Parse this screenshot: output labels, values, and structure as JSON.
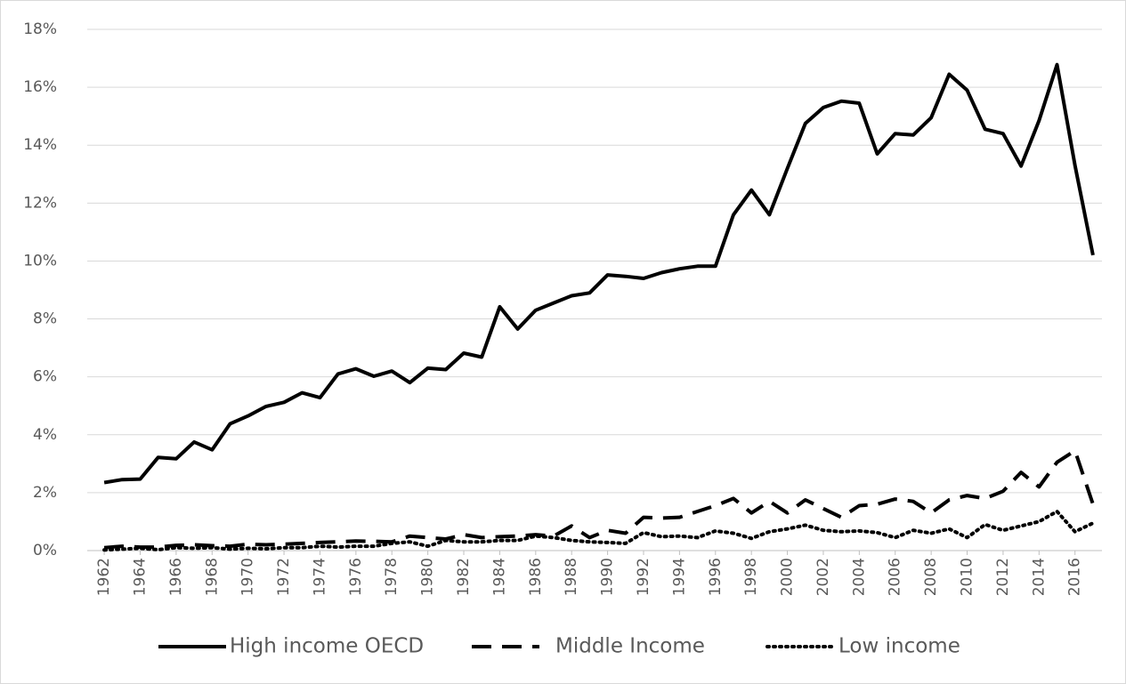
{
  "chart_data": {
    "type": "line",
    "x": [
      1962,
      1963,
      1964,
      1965,
      1966,
      1967,
      1968,
      1969,
      1970,
      1971,
      1972,
      1973,
      1974,
      1975,
      1976,
      1977,
      1978,
      1979,
      1980,
      1981,
      1982,
      1983,
      1984,
      1985,
      1986,
      1987,
      1988,
      1989,
      1990,
      1991,
      1992,
      1993,
      1994,
      1995,
      1996,
      1997,
      1998,
      1999,
      2000,
      2001,
      2002,
      2003,
      2004,
      2005,
      2006,
      2007,
      2008,
      2009,
      2010,
      2011,
      2012,
      2013,
      2014,
      2015,
      2016,
      2017
    ],
    "xlim": [
      1961.5,
      2017.5
    ],
    "xticks": [
      1962,
      1964,
      1966,
      1968,
      1970,
      1972,
      1974,
      1976,
      1978,
      1980,
      1982,
      1984,
      1986,
      1988,
      1990,
      1992,
      1994,
      1996,
      1998,
      2000,
      2002,
      2004,
      2006,
      2008,
      2010,
      2012,
      2014,
      2016
    ],
    "ylim": [
      0,
      18
    ],
    "yticks": [
      {
        "value": 0,
        "label": "0%"
      },
      {
        "value": 2,
        "label": "2%"
      },
      {
        "value": 4,
        "label": "4%"
      },
      {
        "value": 6,
        "label": "6%"
      },
      {
        "value": 8,
        "label": "8%"
      },
      {
        "value": 10,
        "label": "10%"
      },
      {
        "value": 12,
        "label": "12%"
      },
      {
        "value": 14,
        "label": "14%"
      },
      {
        "value": 16,
        "label": "16%"
      },
      {
        "value": 18,
        "label": "18%"
      }
    ],
    "grid": true,
    "legend": "bottom",
    "series": [
      {
        "name": "High income OECD",
        "color": "#000000",
        "line_style": "solid",
        "values": [
          2.35,
          2.45,
          2.47,
          3.22,
          3.17,
          3.75,
          3.48,
          4.38,
          4.65,
          4.98,
          5.12,
          5.45,
          5.28,
          6.1,
          6.28,
          6.02,
          6.2,
          5.8,
          6.3,
          6.25,
          6.82,
          6.68,
          8.42,
          7.65,
          8.3,
          8.55,
          8.8,
          8.9,
          9.52,
          9.47,
          9.4,
          9.6,
          9.73,
          9.82,
          9.82,
          11.6,
          12.45,
          11.6,
          13.2,
          14.75,
          15.3,
          15.52,
          15.45,
          13.7,
          14.4,
          14.35,
          14.95,
          16.45,
          15.9,
          14.55,
          14.4,
          13.28,
          14.85,
          16.78,
          13.3,
          10.2
        ]
      },
      {
        "name": "Middle Income",
        "color": "#000000",
        "line_style": "dashed",
        "values": [
          0.1,
          0.15,
          0.12,
          0.12,
          0.18,
          0.2,
          0.17,
          0.15,
          0.22,
          0.2,
          0.22,
          0.25,
          0.28,
          0.3,
          0.33,
          0.32,
          0.3,
          0.5,
          0.45,
          0.4,
          0.55,
          0.45,
          0.48,
          0.5,
          0.55,
          0.5,
          0.85,
          0.45,
          0.7,
          0.6,
          1.15,
          1.12,
          1.15,
          1.35,
          1.55,
          1.8,
          1.3,
          1.7,
          1.3,
          1.75,
          1.45,
          1.15,
          1.55,
          1.6,
          1.78,
          1.7,
          1.3,
          1.75,
          1.9,
          1.8,
          2.05,
          2.7,
          2.2,
          3.05,
          3.45,
          1.6
        ]
      },
      {
        "name": "Low income",
        "color": "#000000",
        "line_style": "dotted",
        "values": [
          0.02,
          0.05,
          0.08,
          0.03,
          0.1,
          0.08,
          0.1,
          0.05,
          0.08,
          0.06,
          0.1,
          0.1,
          0.15,
          0.12,
          0.15,
          0.15,
          0.25,
          0.3,
          0.15,
          0.35,
          0.3,
          0.3,
          0.35,
          0.35,
          0.5,
          0.45,
          0.35,
          0.3,
          0.28,
          0.25,
          0.62,
          0.48,
          0.5,
          0.45,
          0.68,
          0.6,
          0.42,
          0.65,
          0.75,
          0.88,
          0.7,
          0.65,
          0.68,
          0.62,
          0.45,
          0.7,
          0.6,
          0.75,
          0.45,
          0.9,
          0.7,
          0.85,
          1.0,
          1.35,
          0.65,
          0.95
        ]
      }
    ]
  }
}
